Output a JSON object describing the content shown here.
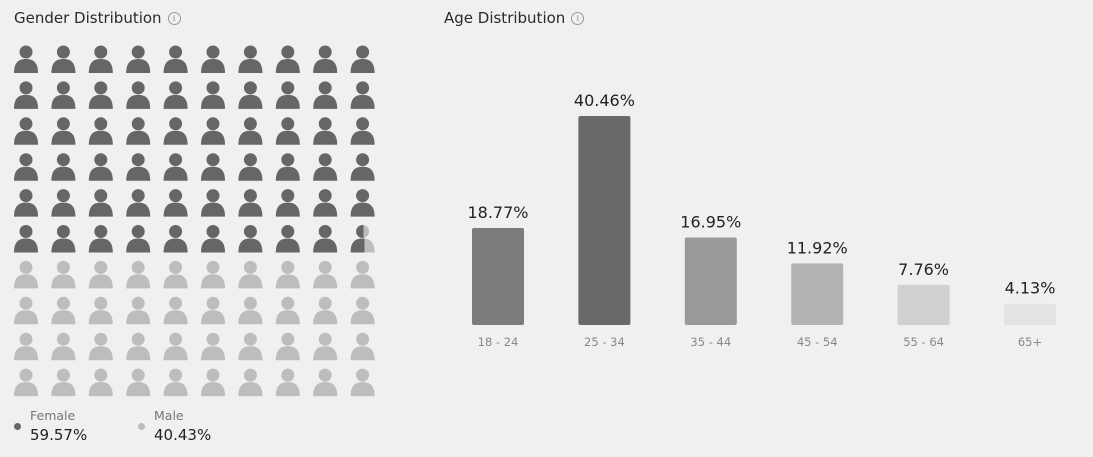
{
  "gender_panel": {
    "title": "Gender Distribution",
    "info_glyph": "i",
    "legend": [
      {
        "label": "Female",
        "value": "59.57%",
        "color": "#666666"
      },
      {
        "label": "Male",
        "value": "40.43%",
        "color": "#bdbdbd"
      }
    ],
    "icon_name": "person-icon"
  },
  "age_panel": {
    "title": "Age Distribution",
    "info_glyph": "i"
  },
  "chart_data": [
    {
      "type": "pictogram",
      "title": "Gender Distribution",
      "icons_total": 100,
      "grid": {
        "columns": 10,
        "rows": 10
      },
      "series": [
        {
          "name": "Female",
          "value": 59.57,
          "color": "#666666"
        },
        {
          "name": "Male",
          "value": 40.43,
          "color": "#bdbdbd"
        }
      ]
    },
    {
      "type": "bar",
      "title": "Age Distribution",
      "categories": [
        "18 - 24",
        "25 - 34",
        "35 - 44",
        "45 - 54",
        "55 - 64",
        "65+"
      ],
      "values": [
        18.77,
        40.46,
        16.95,
        11.92,
        7.76,
        4.13
      ],
      "value_labels": [
        "18.77%",
        "40.46%",
        "16.95%",
        "11.92%",
        "7.76%",
        "4.13%"
      ],
      "colors": [
        "#7c7c7c",
        "#696969",
        "#999999",
        "#b3b3b3",
        "#d0d0d0",
        "#e3e3e3"
      ],
      "ylim": [
        0,
        40.46
      ],
      "grid": false
    }
  ]
}
